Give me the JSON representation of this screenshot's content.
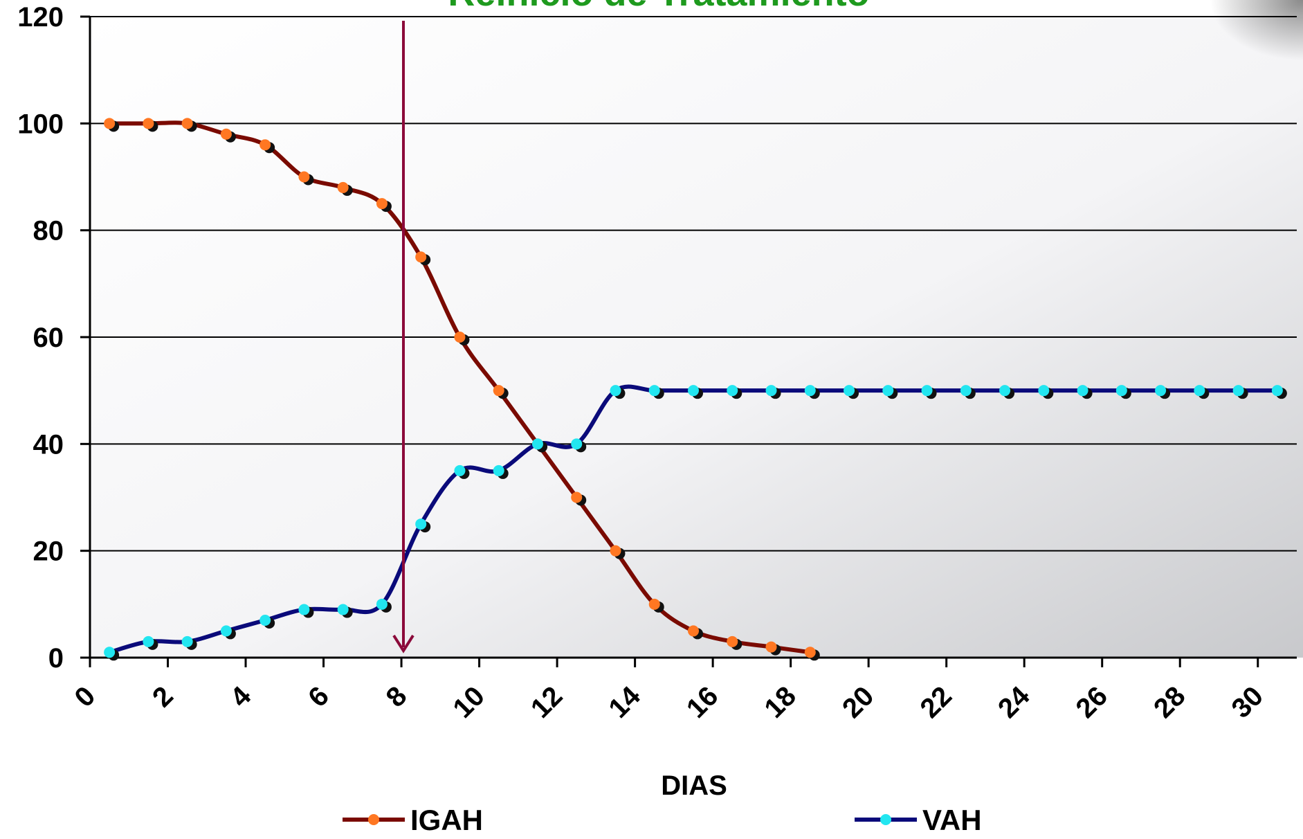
{
  "chart_data": {
    "type": "line",
    "title": "Reinicio de Tratamiento",
    "x_label": "DIAS",
    "x": [
      0.5,
      1.5,
      2.5,
      3.5,
      4.5,
      5.5,
      6.5,
      7.5,
      8.5,
      9.5,
      10.5,
      11.5,
      12.5,
      13.5,
      14.5,
      15.5,
      16.5,
      17.5,
      18.5,
      19.5,
      20.5,
      21.5,
      22.5,
      23.5,
      24.5,
      25.5,
      26.5,
      27.5,
      28.5,
      29.5,
      30.5
    ],
    "series": [
      {
        "name": "IGAH",
        "color": "#7a0a00",
        "marker_color": "#ff7722",
        "values": [
          100,
          100,
          100,
          98,
          96,
          90,
          88,
          85,
          75,
          60,
          50,
          40,
          30,
          20,
          10,
          5,
          3,
          2,
          1,
          null,
          null,
          null,
          null,
          null,
          null,
          null,
          null,
          null,
          null,
          null,
          null
        ]
      },
      {
        "name": "VAH",
        "color": "#0a0a7a",
        "marker_color": "#22e6f0",
        "values": [
          1,
          3,
          3,
          5,
          7,
          9,
          9,
          10,
          25,
          35,
          35,
          40,
          40,
          50,
          50,
          50,
          50,
          50,
          50,
          50,
          50,
          50,
          50,
          50,
          50,
          50,
          50,
          50,
          50,
          50,
          50
        ]
      }
    ],
    "xlim": [
      0,
      31
    ],
    "xticks": [
      0,
      2,
      4,
      6,
      8,
      10,
      12,
      14,
      16,
      18,
      20,
      22,
      24,
      26,
      28,
      30
    ],
    "ylim": [
      0,
      120
    ],
    "yticks": [
      0,
      20,
      40,
      60,
      80,
      100,
      120
    ],
    "grid": true
  }
}
